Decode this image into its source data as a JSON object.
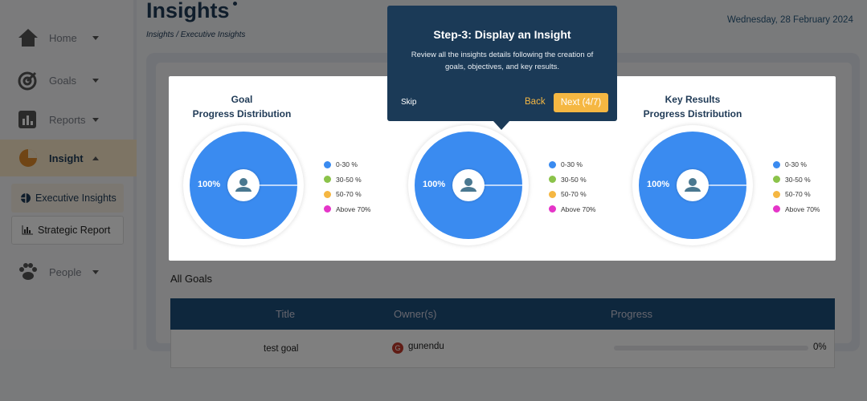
{
  "sidebar": {
    "items": [
      {
        "label": "Home",
        "icon": "home-icon"
      },
      {
        "label": "Goals",
        "icon": "target-icon"
      },
      {
        "label": "Reports",
        "icon": "bar-chart-icon"
      },
      {
        "label": "Insight",
        "icon": "pie-chart-icon",
        "active": true
      },
      {
        "label": "People",
        "icon": "paw-icon"
      }
    ],
    "subitems": [
      {
        "label": "Executive Insights",
        "active": true
      },
      {
        "label": "Strategic Report"
      }
    ]
  },
  "header": {
    "title": "Insights",
    "breadcrumb": "Insights / Executive Insights",
    "date": "Wednesday, 28 February 2024"
  },
  "charts": [
    {
      "title_line1": "Goal",
      "title_line2": "Progress Distribution",
      "label": "100%"
    },
    {
      "title_line1": "",
      "title_line2": "",
      "label": "100%"
    },
    {
      "title_line1": "Key Results",
      "title_line2": "Progress Distribution",
      "label": "100%"
    }
  ],
  "chart_data": [
    {
      "type": "pie",
      "title": "Goal Progress Distribution",
      "categories": [
        "0-30 %",
        "30-50 %",
        "50-70 %",
        "Above 70%"
      ],
      "values": [
        100,
        0,
        0,
        0
      ],
      "colors": [
        "#3a8bf0",
        "#8bc34a",
        "#f5b742",
        "#e535c8"
      ],
      "legend": "right"
    },
    {
      "type": "pie",
      "title": "",
      "categories": [
        "0-30 %",
        "30-50 %",
        "50-70 %",
        "Above 70%"
      ],
      "values": [
        100,
        0,
        0,
        0
      ],
      "colors": [
        "#3a8bf0",
        "#8bc34a",
        "#f5b742",
        "#e535c8"
      ],
      "legend": "right"
    },
    {
      "type": "pie",
      "title": "Key Results Progress Distribution",
      "categories": [
        "0-30 %",
        "30-50 %",
        "50-70 %",
        "Above 70%"
      ],
      "values": [
        100,
        0,
        0,
        0
      ],
      "colors": [
        "#3a8bf0",
        "#8bc34a",
        "#f5b742",
        "#e535c8"
      ],
      "legend": "right"
    }
  ],
  "legend": [
    "0-30 %",
    "30-50 %",
    "50-70 %",
    "Above 70%"
  ],
  "goals": {
    "heading": "All Goals",
    "columns": [
      "Title",
      "Owner(s)",
      "Progress"
    ],
    "rows": [
      {
        "title": "test goal",
        "owner": "gunendu",
        "owner_initial": "G",
        "progress": "0%",
        "progress_value": 0
      }
    ]
  },
  "tour": {
    "title": "Step-3: Display an Insight",
    "body": "Review all the insights details following the creation of goals, objectives, and key results.",
    "skip": "Skip",
    "back": "Back",
    "next": "Next (4/7)"
  }
}
